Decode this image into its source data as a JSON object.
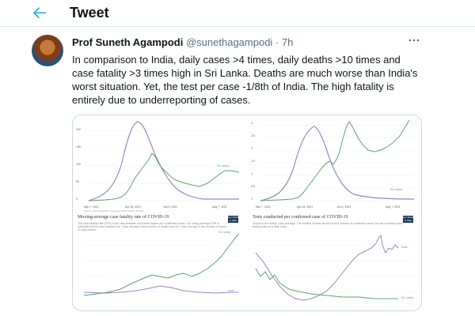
{
  "header": {
    "title": "Tweet"
  },
  "tweet": {
    "author_name": "Prof Suneth Agampodi",
    "handle": "@sunethagampodi",
    "separator": "·",
    "time": "7h",
    "paragraph": "In comparison to India, daily cases >4 times, daily deaths >10 times and case fatality >3 times high in Sri Lanka. Deaths are much worse than India's worst situation. Yet, the test per case -1/8th of India. The high fatality is entirely due to underreporting of cases."
  },
  "icons": {
    "back": "arrow-left-icon",
    "more": "more-horizontal-icon"
  },
  "colors": {
    "accent": "#1da1f2",
    "india": "#9a84c4",
    "sri_lanka": "#5aa36c"
  },
  "charts": [
    {
      "x_ticks": [
        "Mar 7, 2021",
        "Apr 26, 2021",
        "Jun 4, 2021",
        "Aug 7, 2021"
      ],
      "y_ticks": [
        "0",
        "50",
        "100",
        "150",
        "200"
      ],
      "series_labels": [
        "Sri Lanka"
      ],
      "source": "Source: Johns Hopkins University CSSE COVID-19 Data"
    },
    {
      "x_ticks": [
        "Mar 7, 2021",
        "Apr 26, 2021",
        "Jun 4, 2021",
        "Aug 7, 2021"
      ],
      "y_ticks": [
        "0",
        "0.5",
        "1",
        "1.5",
        "2",
        "2.5",
        "3"
      ],
      "series_labels": [
        "Sri Lanka"
      ],
      "source": ""
    },
    {
      "title": "Moving-average case fatality rate of COVID-19",
      "subtitle": "The case fatality rate (CFR) is the ratio between confirmed deaths and confirmed cases. Our rolling average CFR is calculated as the ratio between the 7-day average of the number of deaths and the 7-day average of the number of cases 10 days earlier.",
      "badge": "Our World in Data",
      "series_labels": [
        "Sri Lanka",
        "India"
      ]
    },
    {
      "title": "Tests conducted per confirmed case of COVID-19",
      "subtitle": "Shown is the rolling 7-day average. The number of tests divided by the number of confirmed cases. Not all countries report testing data on a daily basis.",
      "badge": "Our World in Data",
      "series_labels": [
        "India",
        "Sri Lanka"
      ]
    }
  ]
}
